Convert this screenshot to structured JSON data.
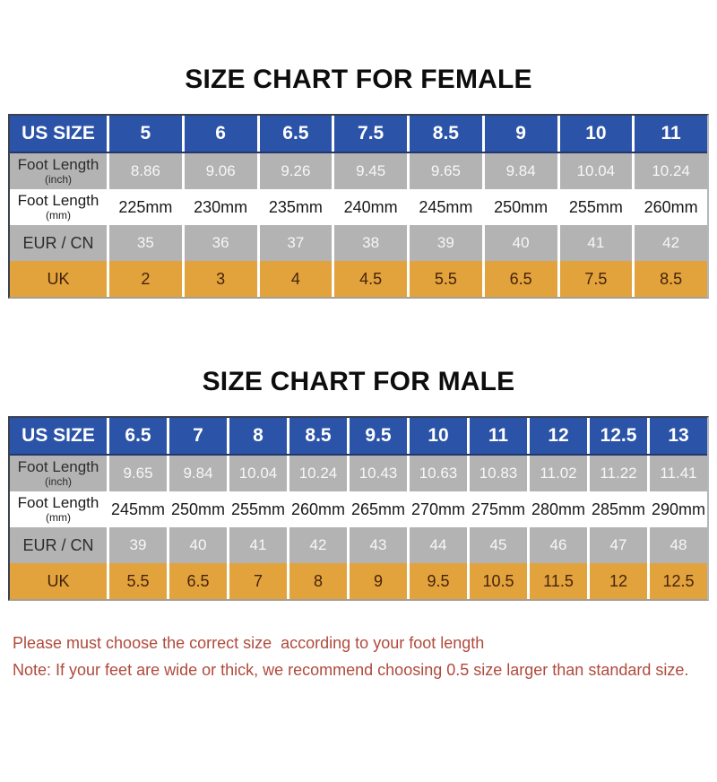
{
  "colors": {
    "header_blue": "#2b53a7",
    "header_border": "#22386a",
    "header_text": "#ffffff",
    "gray_row": "#b3b3b3",
    "gray_label_text": "#2d2d2d",
    "gray_value_text": "#f7f7f7",
    "white_row": "#ffffff",
    "white_row_text": "#191919",
    "orange_row": "#e2a33c",
    "orange_text": "#46230d",
    "table_border": "#3a4150",
    "column_separator": "#ffffff",
    "title_text": "#0d0d0d",
    "note_red": "#b04a3c",
    "page_bg": "#ffffff"
  },
  "tables": [
    {
      "title": "SIZE CHART FOR FEMALE",
      "rows": [
        {
          "style": "header",
          "label": "US SIZE",
          "sublabel": "",
          "values": [
            "5",
            "6",
            "6.5",
            "7.5",
            "8.5",
            "9",
            "10",
            "11"
          ]
        },
        {
          "style": "gray",
          "label": "Foot Length",
          "sublabel": "(inch)",
          "values": [
            "8.86",
            "9.06",
            "9.26",
            "9.45",
            "9.65",
            "9.84",
            "10.04",
            "10.24"
          ]
        },
        {
          "style": "white",
          "label": "Foot Length",
          "sublabel": "(mm)",
          "values": [
            "225mm",
            "230mm",
            "235mm",
            "240mm",
            "245mm",
            "250mm",
            "255mm",
            "260mm"
          ]
        },
        {
          "style": "gray",
          "label": "EUR / CN",
          "sublabel": "",
          "values": [
            "35",
            "36",
            "37",
            "38",
            "39",
            "40",
            "41",
            "42"
          ]
        },
        {
          "style": "orange",
          "label": "UK",
          "sublabel": "",
          "values": [
            "2",
            "3",
            "4",
            "4.5",
            "5.5",
            "6.5",
            "7.5",
            "8.5"
          ]
        }
      ]
    },
    {
      "title": "SIZE CHART FOR MALE",
      "rows": [
        {
          "style": "header",
          "label": "US SIZE",
          "sublabel": "",
          "values": [
            "6.5",
            "7",
            "8",
            "8.5",
            "9.5",
            "10",
            "11",
            "12",
            "12.5",
            "13"
          ]
        },
        {
          "style": "gray",
          "label": "Foot Length",
          "sublabel": "(inch)",
          "values": [
            "9.65",
            "9.84",
            "10.04",
            "10.24",
            "10.43",
            "10.63",
            "10.83",
            "11.02",
            "11.22",
            "11.41"
          ]
        },
        {
          "style": "white",
          "label": "Foot Length",
          "sublabel": "(mm)",
          "values": [
            "245mm",
            "250mm",
            "255mm",
            "260mm",
            "265mm",
            "270mm",
            "275mm",
            "280mm",
            "285mm",
            "290mm"
          ]
        },
        {
          "style": "gray",
          "label": "EUR / CN",
          "sublabel": "",
          "values": [
            "39",
            "40",
            "41",
            "42",
            "43",
            "44",
            "45",
            "46",
            "47",
            "48"
          ]
        },
        {
          "style": "orange",
          "label": "UK",
          "sublabel": "",
          "values": [
            "5.5",
            "6.5",
            "7",
            "8",
            "9",
            "9.5",
            "10.5",
            "11.5",
            "12",
            "12.5"
          ]
        }
      ]
    }
  ],
  "notes": [
    "Please must choose the correct size  according to your foot length",
    "Note: If your feet are wide or thick, we recommend choosing 0.5 size larger than standard size."
  ]
}
